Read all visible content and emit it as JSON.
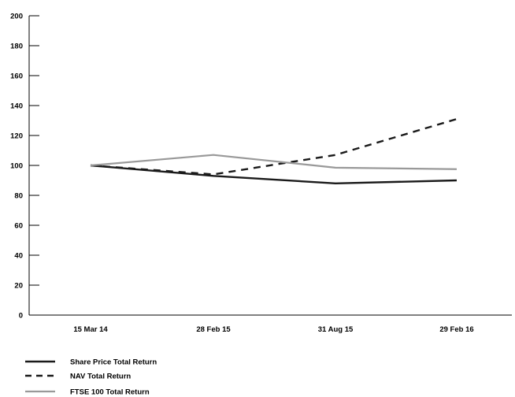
{
  "chart_data": {
    "type": "line",
    "title": "",
    "xlabel": "",
    "ylabel": "",
    "categories": [
      "15 Mar 14",
      "28 Feb 15",
      "31 Aug 15",
      "29 Feb 16"
    ],
    "ylim": [
      0,
      200
    ],
    "yticks": [
      0,
      20,
      40,
      60,
      80,
      100,
      120,
      140,
      160,
      180,
      200
    ],
    "grid": false,
    "legend_position": "bottom-left",
    "series": [
      {
        "name": "Share Price Total Return",
        "values": [
          100,
          93,
          88,
          90
        ],
        "color": "#1a1a1a",
        "style": "solid"
      },
      {
        "name": "NAV Total Return",
        "values": [
          100,
          94,
          107,
          131
        ],
        "color": "#1a1a1a",
        "style": "dashed"
      },
      {
        "name": "FTSE 100 Total Return",
        "values": [
          100,
          107,
          98.5,
          97.5
        ],
        "color": "#999999",
        "style": "solid"
      }
    ]
  }
}
